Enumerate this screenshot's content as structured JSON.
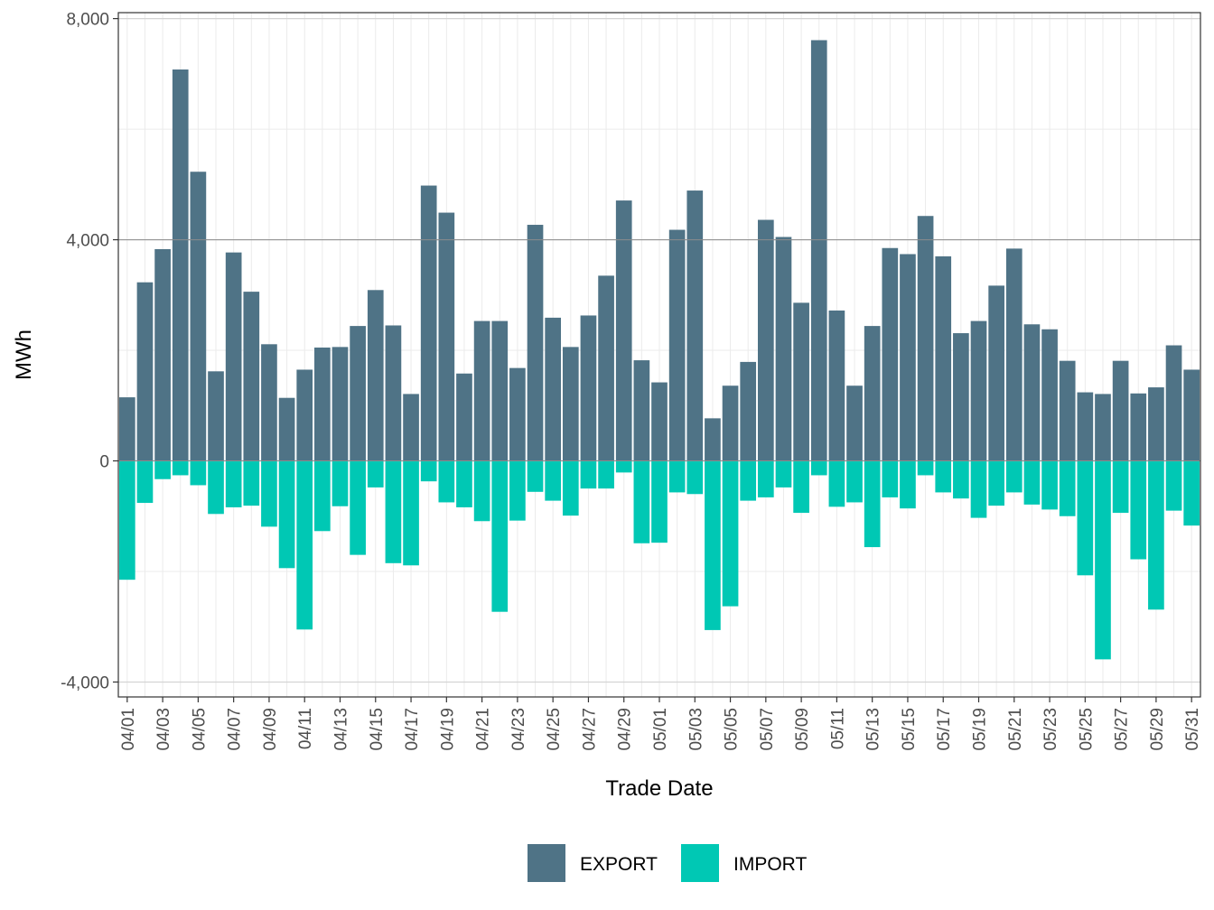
{
  "chart_data": {
    "type": "bar",
    "stacked": true,
    "xlabel": "Trade Date",
    "ylabel": "MWh",
    "ylim": [
      -4000,
      8000
    ],
    "y_ticks": [
      -4000,
      0,
      4000,
      8000
    ],
    "y_tick_labels": [
      "-4,000",
      "0",
      "4,000",
      "8,000"
    ],
    "grid": true,
    "legend_position": "bottom",
    "categories": [
      "04/01",
      "04/02",
      "04/03",
      "04/04",
      "04/05",
      "04/06",
      "04/07",
      "04/08",
      "04/09",
      "04/10",
      "04/11",
      "04/12",
      "04/13",
      "04/14",
      "04/15",
      "04/16",
      "04/17",
      "04/18",
      "04/19",
      "04/20",
      "04/21",
      "04/22",
      "04/23",
      "04/24",
      "04/25",
      "04/26",
      "04/27",
      "04/28",
      "04/29",
      "04/30",
      "05/01",
      "05/02",
      "05/03",
      "05/04",
      "05/05",
      "05/06",
      "05/07",
      "05/08",
      "05/09",
      "05/10",
      "05/11",
      "05/12",
      "05/13",
      "05/14",
      "05/15",
      "05/16",
      "05/17",
      "05/18",
      "05/19",
      "05/20",
      "05/21",
      "05/22",
      "05/23",
      "05/24",
      "05/25",
      "05/26",
      "05/27",
      "05/28",
      "05/29",
      "05/30",
      "05/31"
    ],
    "x_tick_labels": [
      "04/01",
      "04/03",
      "04/05",
      "04/07",
      "04/09",
      "04/11",
      "04/13",
      "04/15",
      "04/17",
      "04/19",
      "04/21",
      "04/23",
      "04/25",
      "04/27",
      "04/29",
      "05/01",
      "05/03",
      "05/05",
      "05/07",
      "05/09",
      "05/11",
      "05/13",
      "05/15",
      "05/17",
      "05/19",
      "05/21",
      "05/23",
      "05/25",
      "05/27",
      "05/29",
      "05/31"
    ],
    "series": [
      {
        "name": "EXPORT",
        "color": "#4f7386",
        "values": [
          1150,
          3230,
          3830,
          7080,
          5230,
          1620,
          3770,
          3060,
          2110,
          1140,
          1650,
          2050,
          2060,
          2440,
          3090,
          2450,
          1210,
          4980,
          4490,
          1580,
          2530,
          2530,
          1680,
          4270,
          2590,
          2060,
          2630,
          3350,
          4710,
          1820,
          1420,
          4180,
          4890,
          770,
          1360,
          1790,
          4360,
          4050,
          2860,
          7610,
          2720,
          1360,
          2440,
          3850,
          3740,
          4430,
          3700,
          2310,
          2530,
          3170,
          3840,
          2470,
          2380,
          1810,
          1240,
          1210,
          1810,
          1220,
          1330,
          2090,
          1650
        ]
      },
      {
        "name": "IMPORT",
        "color": "#00c8b4",
        "values": [
          -2150,
          -760,
          -330,
          -260,
          -440,
          -960,
          -840,
          -810,
          -1190,
          -1940,
          -3050,
          -1270,
          -820,
          -1700,
          -480,
          -1850,
          -1890,
          -370,
          -750,
          -840,
          -1090,
          -2730,
          -1080,
          -560,
          -720,
          -990,
          -500,
          -500,
          -210,
          -1490,
          -1480,
          -570,
          -600,
          -3060,
          -2630,
          -720,
          -660,
          -480,
          -940,
          -260,
          -830,
          -750,
          -1560,
          -660,
          -860,
          -260,
          -570,
          -680,
          -1030,
          -810,
          -570,
          -790,
          -880,
          -1000,
          -2070,
          -3590,
          -940,
          -1780,
          -2690,
          -900,
          -1170
        ]
      }
    ]
  }
}
